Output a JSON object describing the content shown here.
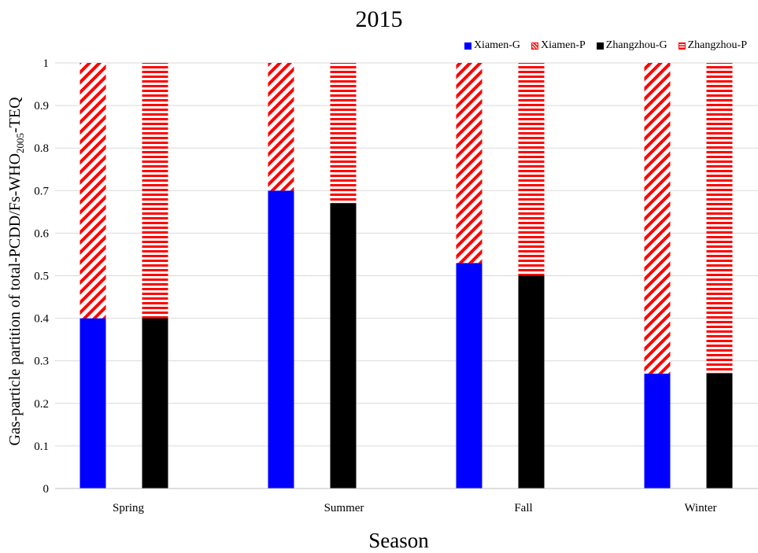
{
  "chart_data": {
    "type": "bar",
    "stacked": true,
    "title": "2015",
    "xlabel": "Season",
    "ylabel": "Gas-particle partition of total-PCDD/Fs-WHO2005-TEQ",
    "ylim": [
      0,
      1
    ],
    "yticks": [
      "0",
      "0.1",
      "0.2",
      "0.3",
      "0.4",
      "0.5",
      "0.6",
      "0.7",
      "0.8",
      "0.9",
      "1"
    ],
    "categories": [
      "Spring",
      "Summer",
      "Fall",
      "Winter"
    ],
    "grid": true,
    "legend_position": "top-right",
    "groups": [
      {
        "name": "Xiamen",
        "series": [
          {
            "name": "Xiamen-G",
            "values": [
              0.4,
              0.7,
              0.53,
              0.27
            ],
            "color": "#0000ff",
            "fill": "solid"
          },
          {
            "name": "Xiamen-P",
            "values": [
              0.6,
              0.3,
              0.47,
              0.73
            ],
            "color": "#ff0000",
            "fill": "diagonal-hatch"
          }
        ]
      },
      {
        "name": "Zhangzhou",
        "series": [
          {
            "name": "Zhangzhou-G",
            "values": [
              0.4,
              0.67,
              0.5,
              0.27
            ],
            "color": "#000000",
            "fill": "solid"
          },
          {
            "name": "Zhangzhou-P",
            "values": [
              0.6,
              0.33,
              0.5,
              0.73
            ],
            "color": "#ff0000",
            "fill": "horizontal-hatch"
          }
        ]
      }
    ]
  },
  "legend": [
    {
      "label": "Xiamen-G",
      "swatch": "solid-blue"
    },
    {
      "label": "Xiamen-P",
      "swatch": "hatch-diag"
    },
    {
      "label": "Zhangzhou-G",
      "swatch": "solid-black"
    },
    {
      "label": "Zhangzhou-P",
      "swatch": "hatch-horiz"
    }
  ]
}
